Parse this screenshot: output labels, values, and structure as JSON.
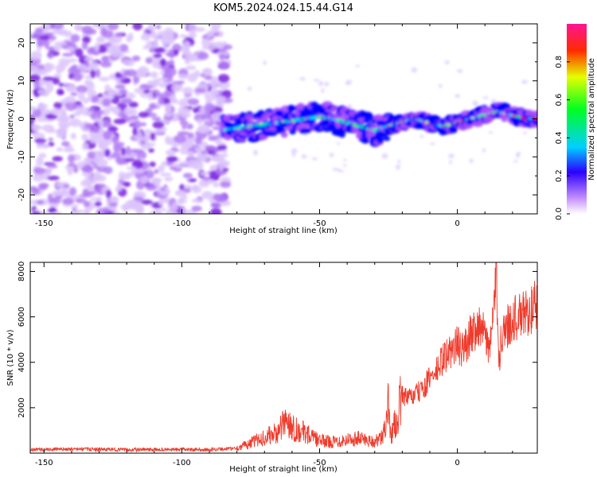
{
  "title": "KOM5.2024.024.15.44.G14",
  "colors": {
    "snr_line": "#ef3b2c",
    "spectro_noise": "#8a2be2",
    "frame": "#000000"
  },
  "chart_data": [
    {
      "type": "heatmap",
      "xlabel": "Height of straight line (km)",
      "ylabel": "Frequency (Hz)",
      "xlim": [
        -155,
        29
      ],
      "ylim": [
        -25,
        25
      ],
      "xticks": [
        -150,
        -100,
        -50,
        0
      ],
      "yticks": [
        -20,
        -10,
        0,
        10,
        20
      ],
      "grid": false,
      "colorbar": {
        "label": "Normalized spectral amplitude",
        "range": [
          0,
          1
        ],
        "ticks": [
          0.0,
          0.2,
          0.4,
          0.6,
          0.8
        ],
        "colormap": [
          "#ffffff",
          "#a64dff",
          "#0000ff",
          "#00e5ff",
          "#00ff00",
          "#ffff00",
          "#ff0000",
          "#ff1493"
        ]
      },
      "trace": {
        "x": [
          -85,
          -75,
          -65,
          -55,
          -50,
          -45,
          -40,
          -35,
          -30,
          -25,
          -20,
          -15,
          -10,
          -5,
          0,
          5,
          10,
          15,
          20,
          25,
          29
        ],
        "y": [
          -3,
          -2,
          -1,
          0,
          0.5,
          0,
          -1,
          -2,
          -3,
          -2,
          -1,
          0,
          -1,
          -2,
          -1,
          0,
          1,
          2,
          1,
          0,
          0
        ]
      }
    },
    {
      "type": "line",
      "xlabel": "Height of straight line (km)",
      "ylabel": "SNR (10 * v/v)",
      "xlim": [
        -155,
        29
      ],
      "ylim": [
        0,
        8400
      ],
      "xticks": [
        -150,
        -100,
        -50,
        0
      ],
      "yticks": [
        2000,
        4000,
        6000,
        8000
      ],
      "grid": false,
      "series": [
        {
          "x": [
            -155,
            -140,
            -120,
            -100,
            -90,
            -80,
            -75,
            -70,
            -65,
            -62,
            -60,
            -58,
            -55,
            -52,
            -50,
            -45,
            -40,
            -35,
            -30,
            -27,
            -25,
            -24,
            -22,
            -20,
            -18,
            -15,
            -12,
            -10,
            -8,
            -5,
            -3,
            0,
            2,
            5,
            8,
            10,
            12,
            13,
            14,
            15,
            16,
            18,
            20,
            22,
            25,
            27,
            29
          ],
          "y": [
            150,
            180,
            150,
            160,
            150,
            220,
            450,
            700,
            900,
            1500,
            1200,
            1000,
            900,
            650,
            550,
            500,
            600,
            650,
            500,
            700,
            2100,
            800,
            1500,
            2600,
            2400,
            2600,
            2900,
            3300,
            3500,
            4200,
            4400,
            4800,
            4500,
            5300,
            5700,
            5100,
            4700,
            5800,
            8300,
            3600,
            5400,
            5500,
            6000,
            5900,
            6200,
            6300,
            6600
          ]
        }
      ]
    }
  ]
}
